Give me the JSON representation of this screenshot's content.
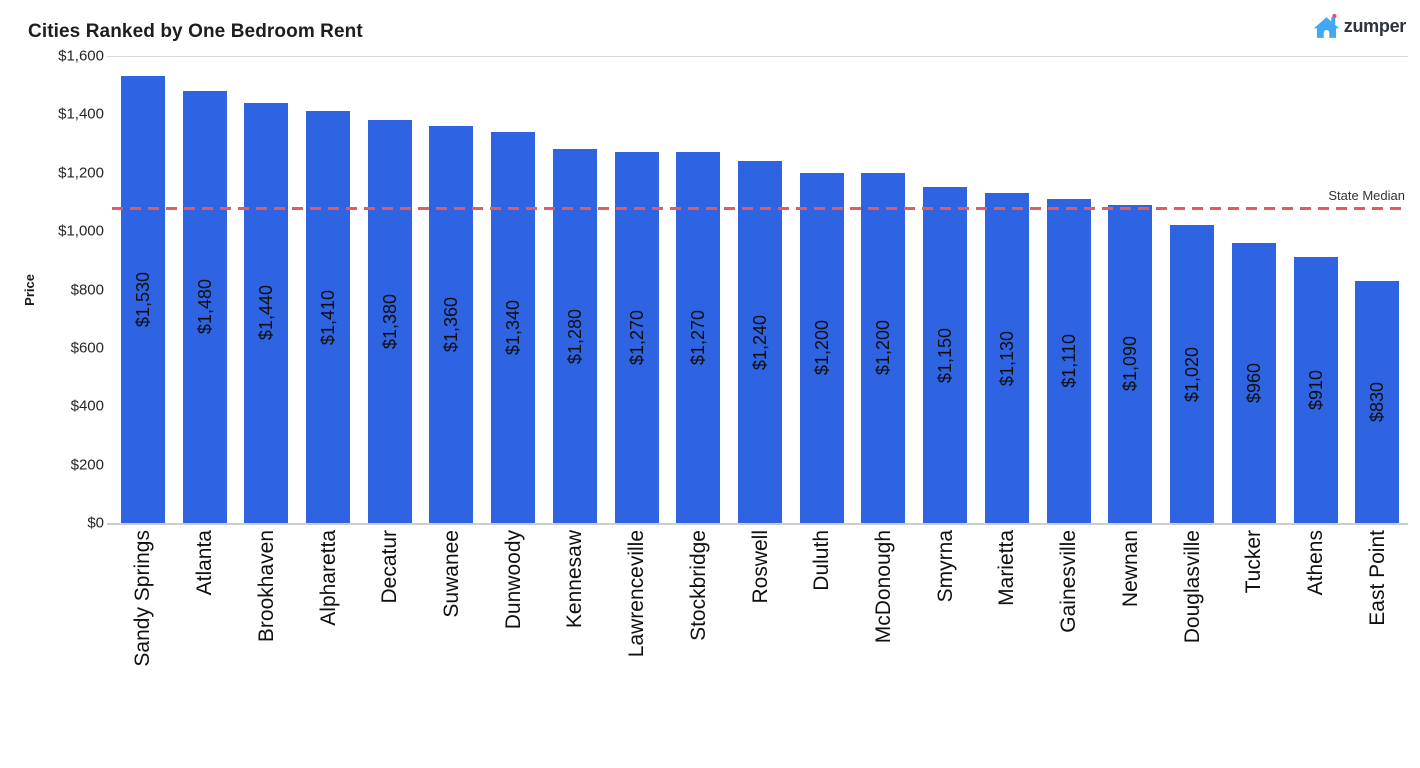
{
  "header": {
    "title": "Cities Ranked by One Bedroom Rent",
    "logo": {
      "text": "zumper",
      "house_color": "#3fa9f5",
      "dot_color": "#ff3f7e"
    }
  },
  "chart_data": {
    "type": "bar",
    "title": "Cities Ranked by One Bedroom Rent",
    "xlabel": "",
    "ylabel": "Price",
    "ylim": [
      0,
      1600
    ],
    "grid": false,
    "legend": false,
    "bar_color": "#2e63e2",
    "categories": [
      "Sandy Springs",
      "Atlanta",
      "Brookhaven",
      "Alpharetta",
      "Decatur",
      "Suwanee",
      "Dunwoody",
      "Kennesaw",
      "Lawrenceville",
      "Stockbridge",
      "Roswell",
      "Duluth",
      "McDonough",
      "Smyrna",
      "Marietta",
      "Gainesville",
      "Newnan",
      "Douglasville",
      "Tucker",
      "Athens",
      "East Point"
    ],
    "values": [
      1530,
      1480,
      1440,
      1410,
      1380,
      1360,
      1340,
      1280,
      1270,
      1270,
      1240,
      1200,
      1200,
      1150,
      1130,
      1110,
      1090,
      1020,
      960,
      910,
      830
    ],
    "bar_labels": [
      "$1,530",
      "$1,480",
      "$1,440",
      "$1,410",
      "$1,380",
      "$1,360",
      "$1,340",
      "$1,280",
      "$1,270",
      "$1,270",
      "$1,240",
      "$1,200",
      "$1,200",
      "$1,150",
      "$1,130",
      "$1,110",
      "$1,090",
      "$1,020",
      "$960",
      "$910",
      "$830"
    ],
    "y_ticks": [
      {
        "label": "$0",
        "value": 0
      },
      {
        "label": "$200",
        "value": 200
      },
      {
        "label": "$400",
        "value": 400
      },
      {
        "label": "$600",
        "value": 600
      },
      {
        "label": "$800",
        "value": 800
      },
      {
        "label": "$1,000",
        "value": 1000
      },
      {
        "label": "$1,200",
        "value": 1200
      },
      {
        "label": "$1,400",
        "value": 1400
      },
      {
        "label": "$1,600",
        "value": 1600
      }
    ],
    "reference_line": {
      "label": "State Median",
      "value": 1080,
      "color": "#e15c5c"
    }
  }
}
